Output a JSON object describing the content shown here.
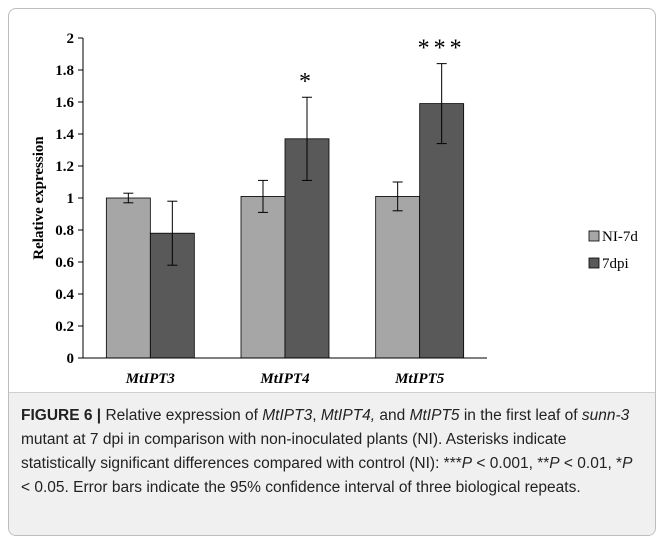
{
  "chart_data": {
    "type": "bar",
    "categories": [
      "MtIPT3",
      "MtIPT4",
      "MtIPT5"
    ],
    "series": [
      {
        "name": "NI-7d",
        "values": [
          1.0,
          1.01,
          1.01
        ],
        "err": [
          0.03,
          0.1,
          0.09
        ],
        "color": "#a6a6a6"
      },
      {
        "name": "7dpi",
        "values": [
          0.78,
          1.37,
          1.59
        ],
        "err": [
          0.2,
          0.26,
          0.25
        ],
        "color": "#595959"
      }
    ],
    "significance": [
      "",
      "*",
      "***"
    ],
    "ylabel": "Relative expression",
    "xlabel": "",
    "ylim": [
      0,
      2
    ],
    "yticks": [
      "0",
      "0.2",
      "0.4",
      "0.6",
      "0.8",
      "1",
      "1.2",
      "1.4",
      "1.6",
      "1.8",
      "2"
    ],
    "grid": false,
    "legend": "right"
  },
  "caption": {
    "label": "FIGURE 6 |",
    "text_1": " Relative expression of ",
    "gene_1": "MtIPT3",
    "text_2": ", ",
    "gene_2": "MtIPT4,",
    "text_3": " and ",
    "gene_3": "MtIPT5",
    "text_4": " in the first leaf of ",
    "mutant": "sunn-3",
    "text_5": " mutant at 7 dpi in comparison with non-inoculated plants (NI). Asterisks indicate statistically significant differences compared with control (NI): ***",
    "p1": "P",
    "text_6": " < 0.001, **",
    "p2": "P",
    "text_7": " < 0.01, *",
    "p3": "P",
    "text_8": " < 0.05. Error bars indicate the 95% confidence interval of three biological repeats."
  }
}
